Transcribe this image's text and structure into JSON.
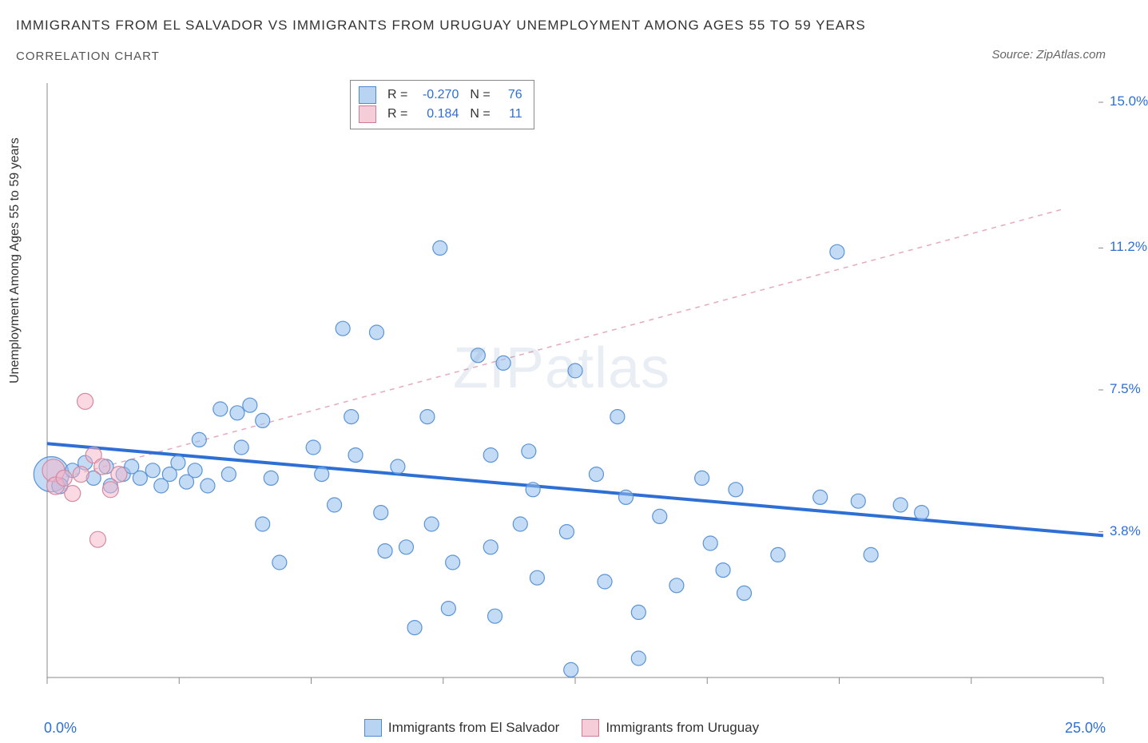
{
  "title": "IMMIGRANTS FROM EL SALVADOR VS IMMIGRANTS FROM URUGUAY UNEMPLOYMENT AMONG AGES 55 TO 59 YEARS",
  "subtitle": "CORRELATION CHART",
  "source": "Source: ZipAtlas.com",
  "watermark": "ZIPatlas",
  "chart": {
    "type": "scatter",
    "background_color": "#ffffff",
    "axis_color": "#888888",
    "tick_color": "#888888",
    "y_axis_label": "Unemployment Among Ages 55 to 59 years",
    "xlim": [
      0,
      25
    ],
    "ylim": [
      0,
      15.5
    ],
    "x_ticks": [
      0,
      3.125,
      6.25,
      9.375,
      12.5,
      15.625,
      18.75,
      21.875,
      25
    ],
    "y_ticks_right": [
      {
        "v": 3.8,
        "label": "3.8%"
      },
      {
        "v": 7.5,
        "label": "7.5%"
      },
      {
        "v": 11.2,
        "label": "11.2%"
      },
      {
        "v": 15.0,
        "label": "15.0%"
      }
    ],
    "x_min_label": "0.0%",
    "x_max_label": "25.0%",
    "series": [
      {
        "name": "Immigrants from El Salvador",
        "color_fill": "rgba(147,189,238,0.55)",
        "color_stroke": "#5a94d6",
        "swatch_fill": "#b9d4f2",
        "swatch_border": "#4f89cf",
        "legend_R": "-0.270",
        "legend_N": "76",
        "trend": {
          "x1": 0,
          "y1": 6.1,
          "x2": 25,
          "y2": 3.7,
          "stroke": "#2e6fd6",
          "width": 4,
          "dash": "none"
        },
        "points": [
          {
            "x": 0.1,
            "y": 5.3,
            "r": 22
          },
          {
            "x": 0.3,
            "y": 5.0,
            "r": 10
          },
          {
            "x": 0.6,
            "y": 5.4,
            "r": 9
          },
          {
            "x": 0.9,
            "y": 5.6,
            "r": 9
          },
          {
            "x": 1.1,
            "y": 5.2,
            "r": 9
          },
          {
            "x": 1.4,
            "y": 5.5,
            "r": 9
          },
          {
            "x": 1.5,
            "y": 5.0,
            "r": 9
          },
          {
            "x": 1.8,
            "y": 5.3,
            "r": 9
          },
          {
            "x": 2.0,
            "y": 5.5,
            "r": 9
          },
          {
            "x": 2.2,
            "y": 5.2,
            "r": 9
          },
          {
            "x": 2.5,
            "y": 5.4,
            "r": 9
          },
          {
            "x": 2.7,
            "y": 5.0,
            "r": 9
          },
          {
            "x": 2.9,
            "y": 5.3,
            "r": 9
          },
          {
            "x": 3.1,
            "y": 5.6,
            "r": 9
          },
          {
            "x": 3.3,
            "y": 5.1,
            "r": 9
          },
          {
            "x": 3.5,
            "y": 5.4,
            "r": 9
          },
          {
            "x": 3.6,
            "y": 6.2,
            "r": 9
          },
          {
            "x": 3.8,
            "y": 5.0,
            "r": 9
          },
          {
            "x": 4.1,
            "y": 7.0,
            "r": 9
          },
          {
            "x": 4.3,
            "y": 5.3,
            "r": 9
          },
          {
            "x": 4.5,
            "y": 6.9,
            "r": 9
          },
          {
            "x": 4.6,
            "y": 6.0,
            "r": 9
          },
          {
            "x": 4.8,
            "y": 7.1,
            "r": 9
          },
          {
            "x": 5.1,
            "y": 6.7,
            "r": 9
          },
          {
            "x": 5.3,
            "y": 5.2,
            "r": 9
          },
          {
            "x": 5.1,
            "y": 4.0,
            "r": 9
          },
          {
            "x": 5.5,
            "y": 3.0,
            "r": 9
          },
          {
            "x": 6.3,
            "y": 6.0,
            "r": 9
          },
          {
            "x": 6.5,
            "y": 5.3,
            "r": 9
          },
          {
            "x": 6.8,
            "y": 4.5,
            "r": 9
          },
          {
            "x": 7.0,
            "y": 9.1,
            "r": 9
          },
          {
            "x": 7.2,
            "y": 6.8,
            "r": 9
          },
          {
            "x": 7.3,
            "y": 5.8,
            "r": 9
          },
          {
            "x": 7.8,
            "y": 9.0,
            "r": 9
          },
          {
            "x": 7.9,
            "y": 4.3,
            "r": 9
          },
          {
            "x": 8.0,
            "y": 3.3,
            "r": 9
          },
          {
            "x": 8.3,
            "y": 5.5,
            "r": 9
          },
          {
            "x": 8.5,
            "y": 3.4,
            "r": 9
          },
          {
            "x": 8.7,
            "y": 1.3,
            "r": 9
          },
          {
            "x": 9.0,
            "y": 6.8,
            "r": 9
          },
          {
            "x": 9.1,
            "y": 4.0,
            "r": 9
          },
          {
            "x": 9.3,
            "y": 11.2,
            "r": 9
          },
          {
            "x": 9.5,
            "y": 1.8,
            "r": 9
          },
          {
            "x": 9.6,
            "y": 3.0,
            "r": 9
          },
          {
            "x": 10.2,
            "y": 8.4,
            "r": 9
          },
          {
            "x": 10.5,
            "y": 5.8,
            "r": 9
          },
          {
            "x": 10.5,
            "y": 3.4,
            "r": 9
          },
          {
            "x": 10.6,
            "y": 1.6,
            "r": 9
          },
          {
            "x": 10.8,
            "y": 8.2,
            "r": 9
          },
          {
            "x": 11.2,
            "y": 4.0,
            "r": 9
          },
          {
            "x": 11.4,
            "y": 5.9,
            "r": 9
          },
          {
            "x": 11.5,
            "y": 4.9,
            "r": 9
          },
          {
            "x": 11.6,
            "y": 2.6,
            "r": 9
          },
          {
            "x": 12.3,
            "y": 3.8,
            "r": 9
          },
          {
            "x": 12.4,
            "y": 0.2,
            "r": 9
          },
          {
            "x": 12.5,
            "y": 8.0,
            "r": 9
          },
          {
            "x": 13.0,
            "y": 5.3,
            "r": 9
          },
          {
            "x": 13.2,
            "y": 2.5,
            "r": 9
          },
          {
            "x": 13.5,
            "y": 6.8,
            "r": 9
          },
          {
            "x": 13.7,
            "y": 4.7,
            "r": 9
          },
          {
            "x": 14.0,
            "y": 0.5,
            "r": 9
          },
          {
            "x": 14.0,
            "y": 1.7,
            "r": 9
          },
          {
            "x": 14.5,
            "y": 4.2,
            "r": 9
          },
          {
            "x": 14.9,
            "y": 2.4,
            "r": 9
          },
          {
            "x": 15.5,
            "y": 5.2,
            "r": 9
          },
          {
            "x": 15.7,
            "y": 3.5,
            "r": 9
          },
          {
            "x": 16.0,
            "y": 2.8,
            "r": 9
          },
          {
            "x": 16.3,
            "y": 4.9,
            "r": 9
          },
          {
            "x": 16.5,
            "y": 2.2,
            "r": 9
          },
          {
            "x": 17.3,
            "y": 3.2,
            "r": 9
          },
          {
            "x": 18.3,
            "y": 4.7,
            "r": 9
          },
          {
            "x": 18.7,
            "y": 11.1,
            "r": 9
          },
          {
            "x": 19.2,
            "y": 4.6,
            "r": 9
          },
          {
            "x": 19.5,
            "y": 3.2,
            "r": 9
          },
          {
            "x": 20.2,
            "y": 4.5,
            "r": 9
          },
          {
            "x": 20.7,
            "y": 4.3,
            "r": 9
          }
        ]
      },
      {
        "name": "Immigrants from Uruguay",
        "color_fill": "rgba(245,180,200,0.5)",
        "color_stroke": "#d48aa0",
        "swatch_fill": "#f4cdd8",
        "swatch_border": "#d07a95",
        "legend_R": "0.184",
        "legend_N": "11",
        "trend": {
          "x1": 0,
          "y1": 5.1,
          "x2": 24,
          "y2": 12.2,
          "stroke": "#e7a9bc",
          "width": 1.5,
          "dash": "6,6"
        },
        "points": [
          {
            "x": 0.15,
            "y": 5.4,
            "r": 14
          },
          {
            "x": 0.2,
            "y": 5.0,
            "r": 11
          },
          {
            "x": 0.4,
            "y": 5.2,
            "r": 10
          },
          {
            "x": 0.6,
            "y": 4.8,
            "r": 10
          },
          {
            "x": 0.8,
            "y": 5.3,
            "r": 10
          },
          {
            "x": 0.9,
            "y": 7.2,
            "r": 10
          },
          {
            "x": 1.1,
            "y": 5.8,
            "r": 10
          },
          {
            "x": 1.2,
            "y": 3.6,
            "r": 10
          },
          {
            "x": 1.3,
            "y": 5.5,
            "r": 10
          },
          {
            "x": 1.5,
            "y": 4.9,
            "r": 10
          },
          {
            "x": 1.7,
            "y": 5.3,
            "r": 10
          }
        ]
      }
    ]
  }
}
